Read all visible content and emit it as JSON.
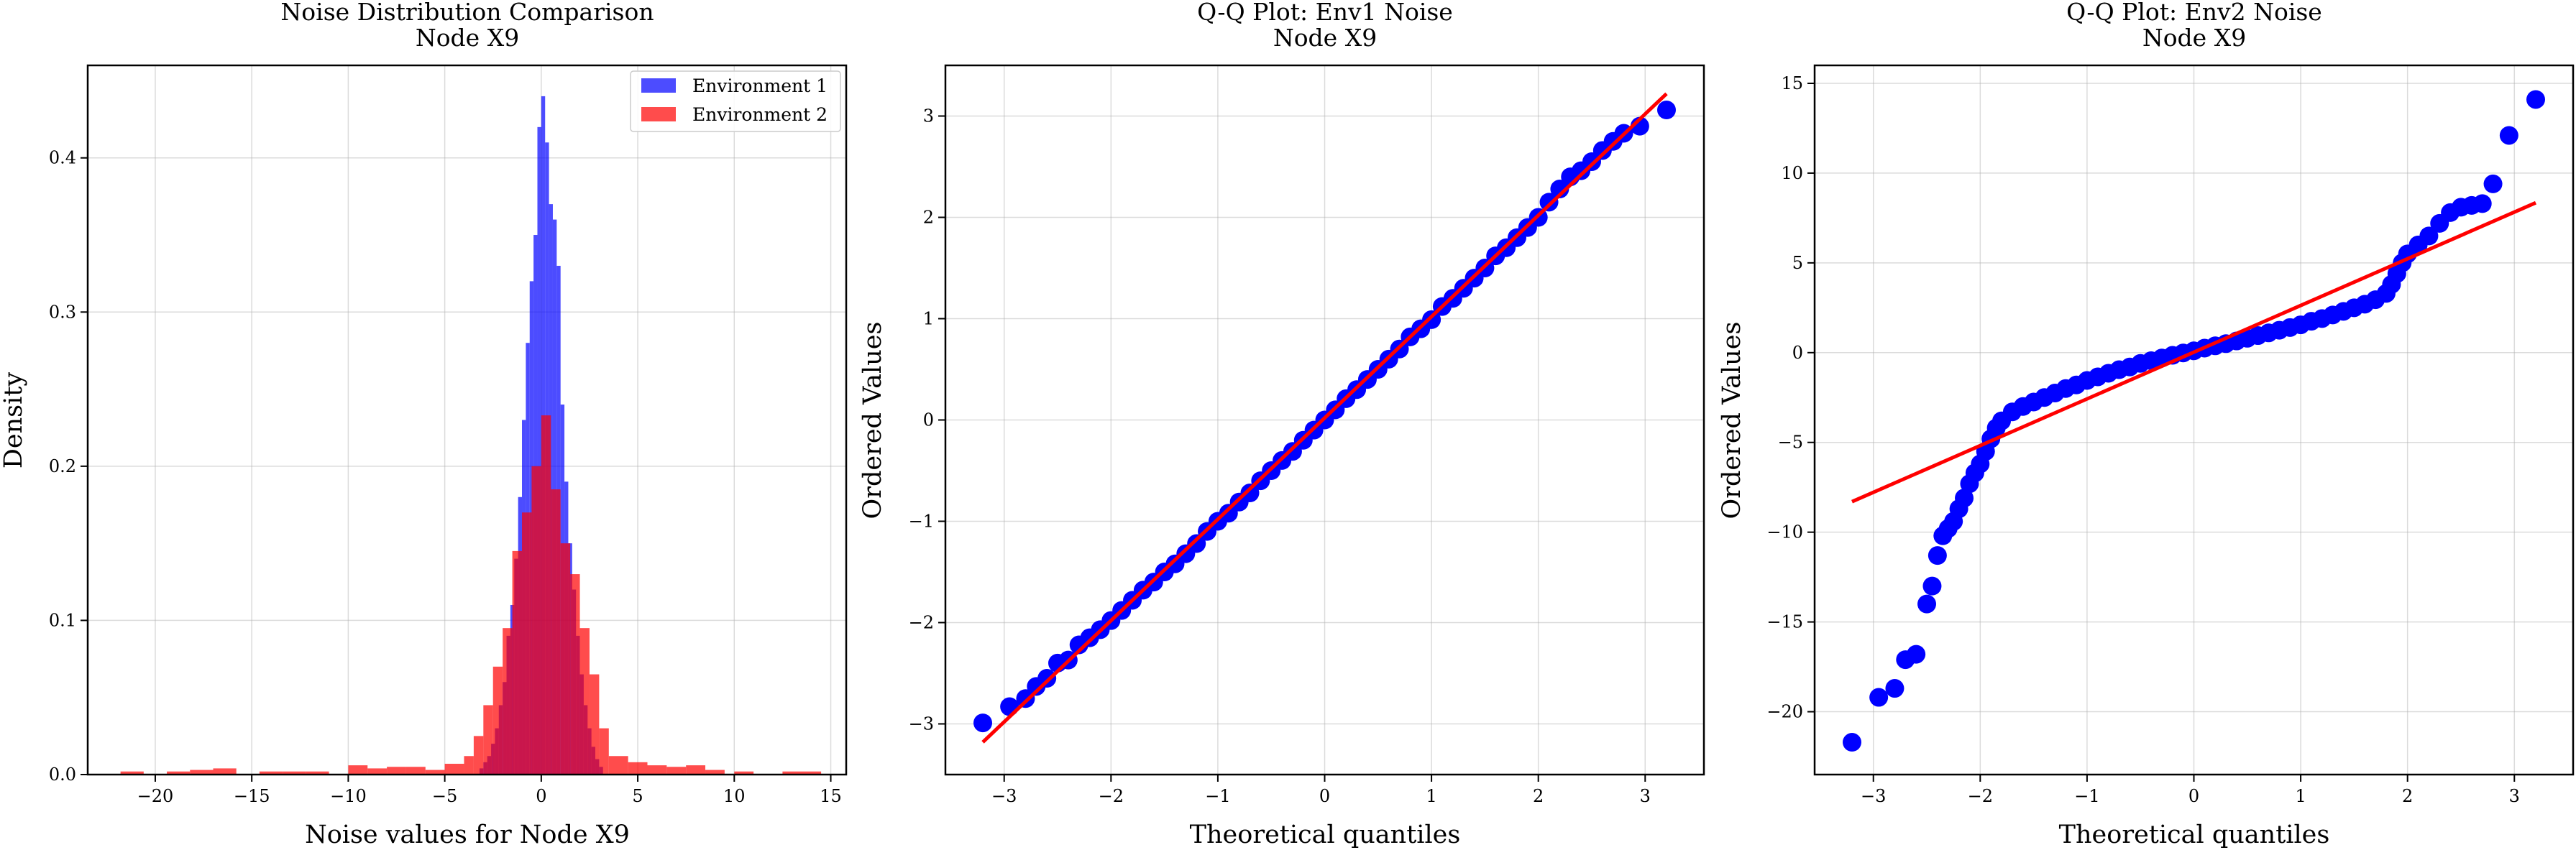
{
  "figure": {
    "background": "#ffffff"
  },
  "chart_data": [
    {
      "type": "histogram",
      "title": "Noise Distribution Comparison",
      "subtitle": "Node X9",
      "xlabel": "Noise values for Node X9",
      "ylabel": "Density",
      "xlim": [
        -23.5,
        15.8
      ],
      "ylim": [
        0,
        0.46
      ],
      "xticks": [
        -20,
        -15,
        -10,
        -5,
        0,
        5,
        10,
        15
      ],
      "yticks": [
        0.0,
        0.1,
        0.2,
        0.3,
        0.4
      ],
      "grid": true,
      "legend": {
        "placement": "top-right",
        "entries": [
          "Environment 1",
          "Environment 2"
        ]
      },
      "series": [
        {
          "name": "Environment 1",
          "color": "#0000ff",
          "opacity": 0.7,
          "bins": [
            {
              "x0": -3.2,
              "x1": -3.0,
              "h": 0.004
            },
            {
              "x0": -3.0,
              "x1": -2.8,
              "h": 0.008
            },
            {
              "x0": -2.8,
              "x1": -2.6,
              "h": 0.012
            },
            {
              "x0": -2.6,
              "x1": -2.4,
              "h": 0.02
            },
            {
              "x0": -2.4,
              "x1": -2.2,
              "h": 0.03
            },
            {
              "x0": -2.2,
              "x1": -2.0,
              "h": 0.045
            },
            {
              "x0": -2.0,
              "x1": -1.8,
              "h": 0.06
            },
            {
              "x0": -1.8,
              "x1": -1.6,
              "h": 0.09
            },
            {
              "x0": -1.6,
              "x1": -1.4,
              "h": 0.11
            },
            {
              "x0": -1.4,
              "x1": -1.2,
              "h": 0.14
            },
            {
              "x0": -1.2,
              "x1": -1.0,
              "h": 0.18
            },
            {
              "x0": -1.0,
              "x1": -0.8,
              "h": 0.23
            },
            {
              "x0": -0.8,
              "x1": -0.6,
              "h": 0.28
            },
            {
              "x0": -0.6,
              "x1": -0.4,
              "h": 0.32
            },
            {
              "x0": -0.4,
              "x1": -0.2,
              "h": 0.35
            },
            {
              "x0": -0.2,
              "x1": 0.0,
              "h": 0.42
            },
            {
              "x0": 0.0,
              "x1": 0.2,
              "h": 0.44
            },
            {
              "x0": 0.2,
              "x1": 0.4,
              "h": 0.41
            },
            {
              "x0": 0.4,
              "x1": 0.6,
              "h": 0.37
            },
            {
              "x0": 0.6,
              "x1": 0.8,
              "h": 0.36
            },
            {
              "x0": 0.8,
              "x1": 1.0,
              "h": 0.33
            },
            {
              "x0": 1.0,
              "x1": 1.2,
              "h": 0.24
            },
            {
              "x0": 1.2,
              "x1": 1.4,
              "h": 0.19
            },
            {
              "x0": 1.4,
              "x1": 1.6,
              "h": 0.15
            },
            {
              "x0": 1.6,
              "x1": 1.8,
              "h": 0.12
            },
            {
              "x0": 1.8,
              "x1": 2.0,
              "h": 0.09
            },
            {
              "x0": 2.0,
              "x1": 2.2,
              "h": 0.065
            },
            {
              "x0": 2.2,
              "x1": 2.4,
              "h": 0.045
            },
            {
              "x0": 2.4,
              "x1": 2.6,
              "h": 0.03
            },
            {
              "x0": 2.6,
              "x1": 2.8,
              "h": 0.018
            },
            {
              "x0": 2.8,
              "x1": 3.0,
              "h": 0.01
            },
            {
              "x0": 3.0,
              "x1": 3.2,
              "h": 0.005
            }
          ]
        },
        {
          "name": "Environment 2",
          "color": "#ff0000",
          "opacity": 0.7,
          "bins": [
            {
              "x0": -21.8,
              "x1": -20.6,
              "h": 0.002
            },
            {
              "x0": -19.4,
              "x1": -18.2,
              "h": 0.002
            },
            {
              "x0": -18.2,
              "x1": -17.0,
              "h": 0.003
            },
            {
              "x0": -17.0,
              "x1": -15.8,
              "h": 0.004
            },
            {
              "x0": -14.6,
              "x1": -13.4,
              "h": 0.002
            },
            {
              "x0": -13.4,
              "x1": -12.2,
              "h": 0.002
            },
            {
              "x0": -12.2,
              "x1": -11.0,
              "h": 0.002
            },
            {
              "x0": -10.0,
              "x1": -9.0,
              "h": 0.006
            },
            {
              "x0": -9.0,
              "x1": -8.0,
              "h": 0.004
            },
            {
              "x0": -8.0,
              "x1": -7.0,
              "h": 0.005
            },
            {
              "x0": -7.0,
              "x1": -6.0,
              "h": 0.005
            },
            {
              "x0": -6.0,
              "x1": -5.0,
              "h": 0.003
            },
            {
              "x0": -5.0,
              "x1": -4.0,
              "h": 0.007
            },
            {
              "x0": -4.0,
              "x1": -3.5,
              "h": 0.012
            },
            {
              "x0": -3.5,
              "x1": -3.0,
              "h": 0.025
            },
            {
              "x0": -3.0,
              "x1": -2.5,
              "h": 0.045
            },
            {
              "x0": -2.5,
              "x1": -2.0,
              "h": 0.07
            },
            {
              "x0": -2.0,
              "x1": -1.5,
              "h": 0.095
            },
            {
              "x0": -1.5,
              "x1": -1.0,
              "h": 0.145
            },
            {
              "x0": -1.0,
              "x1": -0.5,
              "h": 0.17
            },
            {
              "x0": -0.5,
              "x1": 0.0,
              "h": 0.2
            },
            {
              "x0": 0.0,
              "x1": 0.5,
              "h": 0.233
            },
            {
              "x0": 0.5,
              "x1": 1.0,
              "h": 0.185
            },
            {
              "x0": 1.0,
              "x1": 1.5,
              "h": 0.15
            },
            {
              "x0": 1.5,
              "x1": 2.0,
              "h": 0.13
            },
            {
              "x0": 2.0,
              "x1": 2.5,
              "h": 0.095
            },
            {
              "x0": 2.5,
              "x1": 3.0,
              "h": 0.065
            },
            {
              "x0": 3.0,
              "x1": 3.5,
              "h": 0.03
            },
            {
              "x0": 3.5,
              "x1": 4.5,
              "h": 0.012
            },
            {
              "x0": 4.5,
              "x1": 5.5,
              "h": 0.008
            },
            {
              "x0": 5.5,
              "x1": 6.5,
              "h": 0.006
            },
            {
              "x0": 6.5,
              "x1": 7.5,
              "h": 0.005
            },
            {
              "x0": 7.5,
              "x1": 8.5,
              "h": 0.006
            },
            {
              "x0": 8.5,
              "x1": 9.5,
              "h": 0.003
            },
            {
              "x0": 10.0,
              "x1": 11.0,
              "h": 0.002
            },
            {
              "x0": 12.5,
              "x1": 14.5,
              "h": 0.002
            }
          ]
        }
      ]
    },
    {
      "type": "scatter",
      "title": "Q-Q Plot: Env1 Noise",
      "subtitle": "Node X9",
      "xlabel": "Theoretical quantiles",
      "ylabel": "Ordered Values",
      "xlim": [
        -3.55,
        3.55
      ],
      "ylim": [
        -3.5,
        3.5
      ],
      "xticks": [
        -3,
        -2,
        -1,
        0,
        1,
        2,
        3
      ],
      "yticks": [
        -3,
        -2,
        -1,
        0,
        1,
        2,
        3
      ],
      "grid": true,
      "points_color": "#0000ff",
      "line_color": "#ff0000",
      "fit_line": {
        "x": [
          -3.2,
          3.2
        ],
        "y": [
          -3.18,
          3.22
        ]
      },
      "points": [
        [
          -3.2,
          -2.99
        ],
        [
          -2.95,
          -2.83
        ],
        [
          -2.8,
          -2.75
        ],
        [
          -2.7,
          -2.63
        ],
        [
          -2.6,
          -2.55
        ],
        [
          -2.5,
          -2.4
        ],
        [
          -2.4,
          -2.37
        ],
        [
          -2.3,
          -2.22
        ],
        [
          -2.2,
          -2.15
        ],
        [
          -2.1,
          -2.07
        ],
        [
          -2.0,
          -1.98
        ],
        [
          -1.9,
          -1.88
        ],
        [
          -1.8,
          -1.78
        ],
        [
          -1.7,
          -1.68
        ],
        [
          -1.6,
          -1.6
        ],
        [
          -1.5,
          -1.5
        ],
        [
          -1.4,
          -1.42
        ],
        [
          -1.3,
          -1.32
        ],
        [
          -1.2,
          -1.22
        ],
        [
          -1.1,
          -1.1
        ],
        [
          -1.0,
          -1.0
        ],
        [
          -0.9,
          -0.92
        ],
        [
          -0.8,
          -0.81
        ],
        [
          -0.7,
          -0.72
        ],
        [
          -0.6,
          -0.6
        ],
        [
          -0.5,
          -0.5
        ],
        [
          -0.4,
          -0.4
        ],
        [
          -0.3,
          -0.31
        ],
        [
          -0.2,
          -0.2
        ],
        [
          -0.1,
          -0.1
        ],
        [
          0.0,
          0.0
        ],
        [
          0.1,
          0.1
        ],
        [
          0.2,
          0.21
        ],
        [
          0.3,
          0.3
        ],
        [
          0.4,
          0.4
        ],
        [
          0.5,
          0.5
        ],
        [
          0.6,
          0.6
        ],
        [
          0.7,
          0.7
        ],
        [
          0.8,
          0.82
        ],
        [
          0.9,
          0.9
        ],
        [
          1.0,
          0.99
        ],
        [
          1.1,
          1.12
        ],
        [
          1.2,
          1.2
        ],
        [
          1.3,
          1.3
        ],
        [
          1.4,
          1.4
        ],
        [
          1.5,
          1.5
        ],
        [
          1.6,
          1.62
        ],
        [
          1.7,
          1.7
        ],
        [
          1.8,
          1.8
        ],
        [
          1.9,
          1.9
        ],
        [
          2.0,
          2.0
        ],
        [
          2.1,
          2.15
        ],
        [
          2.2,
          2.28
        ],
        [
          2.3,
          2.4
        ],
        [
          2.4,
          2.46
        ],
        [
          2.5,
          2.55
        ],
        [
          2.6,
          2.66
        ],
        [
          2.7,
          2.75
        ],
        [
          2.8,
          2.83
        ],
        [
          2.95,
          2.9
        ],
        [
          3.2,
          3.06
        ]
      ]
    },
    {
      "type": "scatter",
      "title": "Q-Q Plot: Env2 Noise",
      "subtitle": "Node X9",
      "xlabel": "Theoretical quantiles",
      "ylabel": "Ordered Values",
      "xlim": [
        -3.55,
        3.55
      ],
      "ylim": [
        -23.5,
        16
      ],
      "xticks": [
        -3,
        -2,
        -1,
        0,
        1,
        2,
        3
      ],
      "yticks": [
        -20,
        -15,
        -10,
        -5,
        0,
        5,
        10,
        15
      ],
      "grid": true,
      "points_color": "#0000ff",
      "line_color": "#ff0000",
      "fit_line": {
        "x": [
          -3.2,
          3.2
        ],
        "y": [
          -8.3,
          8.35
        ]
      },
      "points": [
        [
          -3.2,
          -21.7
        ],
        [
          -2.95,
          -19.2
        ],
        [
          -2.8,
          -18.7
        ],
        [
          -2.7,
          -17.1
        ],
        [
          -2.6,
          -16.8
        ],
        [
          -2.5,
          -14.0
        ],
        [
          -2.45,
          -13.0
        ],
        [
          -2.4,
          -11.3
        ],
        [
          -2.35,
          -10.2
        ],
        [
          -2.3,
          -9.8
        ],
        [
          -2.25,
          -9.4
        ],
        [
          -2.2,
          -8.7
        ],
        [
          -2.15,
          -8.1
        ],
        [
          -2.1,
          -7.3
        ],
        [
          -2.05,
          -6.7
        ],
        [
          -2.0,
          -6.2
        ],
        [
          -1.95,
          -5.5
        ],
        [
          -1.9,
          -4.8
        ],
        [
          -1.85,
          -4.2
        ],
        [
          -1.8,
          -3.8
        ],
        [
          -1.7,
          -3.3
        ],
        [
          -1.6,
          -3.0
        ],
        [
          -1.5,
          -2.75
        ],
        [
          -1.4,
          -2.5
        ],
        [
          -1.3,
          -2.25
        ],
        [
          -1.2,
          -2.0
        ],
        [
          -1.1,
          -1.8
        ],
        [
          -1.0,
          -1.55
        ],
        [
          -0.9,
          -1.35
        ],
        [
          -0.8,
          -1.15
        ],
        [
          -0.7,
          -0.95
        ],
        [
          -0.6,
          -0.8
        ],
        [
          -0.5,
          -0.6
        ],
        [
          -0.4,
          -0.45
        ],
        [
          -0.3,
          -0.3
        ],
        [
          -0.2,
          -0.15
        ],
        [
          -0.1,
          -0.02
        ],
        [
          0.0,
          0.1
        ],
        [
          0.1,
          0.25
        ],
        [
          0.2,
          0.38
        ],
        [
          0.3,
          0.5
        ],
        [
          0.4,
          0.65
        ],
        [
          0.5,
          0.8
        ],
        [
          0.6,
          0.95
        ],
        [
          0.7,
          1.1
        ],
        [
          0.8,
          1.25
        ],
        [
          0.9,
          1.4
        ],
        [
          1.0,
          1.55
        ],
        [
          1.1,
          1.75
        ],
        [
          1.2,
          1.9
        ],
        [
          1.3,
          2.1
        ],
        [
          1.4,
          2.3
        ],
        [
          1.5,
          2.5
        ],
        [
          1.6,
          2.7
        ],
        [
          1.7,
          2.95
        ],
        [
          1.8,
          3.3
        ],
        [
          1.85,
          3.8
        ],
        [
          1.9,
          4.4
        ],
        [
          1.95,
          5.0
        ],
        [
          2.0,
          5.5
        ],
        [
          2.1,
          6.0
        ],
        [
          2.2,
          6.5
        ],
        [
          2.3,
          7.2
        ],
        [
          2.4,
          7.8
        ],
        [
          2.5,
          8.1
        ],
        [
          2.6,
          8.2
        ],
        [
          2.7,
          8.3
        ],
        [
          2.8,
          9.4
        ],
        [
          2.95,
          12.1
        ],
        [
          3.2,
          14.1
        ]
      ]
    }
  ]
}
